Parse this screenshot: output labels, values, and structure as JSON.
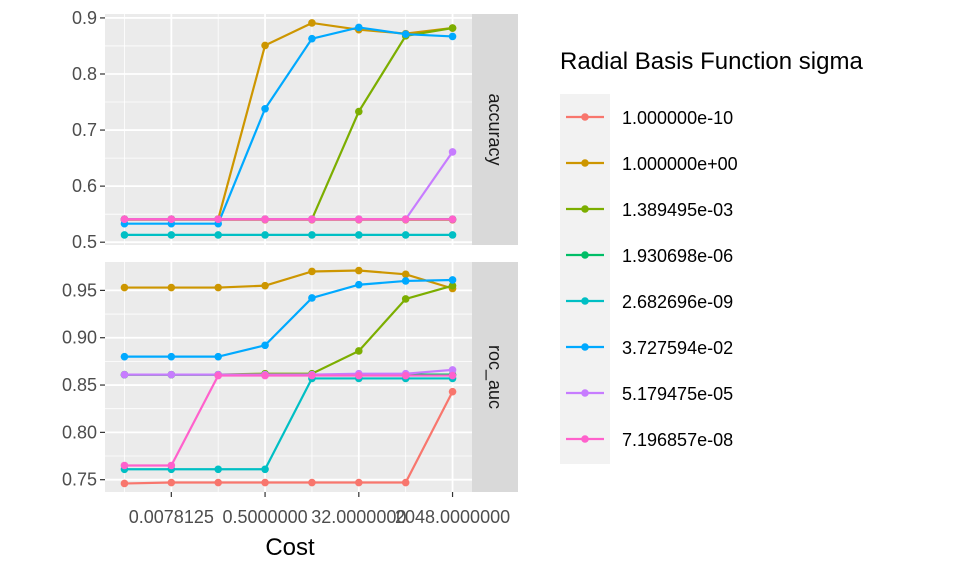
{
  "chart_data": {
    "type": "line",
    "xlabel": "Cost",
    "x_values": [
      0.0009765625,
      0.0078125,
      0.0625,
      0.5,
      4,
      32,
      256,
      2048
    ],
    "x_tick_values": [
      0.0078125,
      0.5,
      32,
      2048
    ],
    "x_tick_labels": [
      "0.0078125",
      "0.5000000",
      "32.0000000",
      "2048.0000000"
    ],
    "x_tick_display": [
      "0.0078125",
      "0.5000000",
      "32.0000000",
      "2048.0000000"
    ],
    "grid": true,
    "legend": {
      "title": "Radial Basis Function sigma",
      "placement": "right"
    },
    "series": [
      {
        "name": "1.000000e-10",
        "color": "#F8766D"
      },
      {
        "name": "1.000000e+00",
        "color": "#CD9600"
      },
      {
        "name": "1.389495e-03",
        "color": "#7CAE00"
      },
      {
        "name": "1.930698e-06",
        "color": "#00BE67"
      },
      {
        "name": "2.682696e-09",
        "color": "#00BFC4"
      },
      {
        "name": "3.727594e-02",
        "color": "#00A9FF"
      },
      {
        "name": "5.179475e-05",
        "color": "#C77CFF"
      },
      {
        "name": "7.196857e-08",
        "color": "#FF61CC"
      }
    ],
    "panels": [
      {
        "strip": "accuracy",
        "ylim": [
          0.495,
          0.907
        ],
        "y_ticks": [
          0.5,
          0.6,
          0.7,
          0.8,
          0.9
        ],
        "y_tick_labels": [
          "0.5",
          "0.6",
          "0.7",
          "0.8",
          "0.9"
        ],
        "values": [
          [
            0.54,
            0.54,
            0.54,
            0.54,
            0.54,
            0.54,
            0.54,
            0.54
          ],
          [
            0.541,
            0.541,
            0.541,
            0.851,
            0.891,
            0.879,
            0.872,
            0.882
          ],
          [
            0.541,
            0.541,
            0.541,
            0.541,
            0.541,
            0.733,
            0.868,
            0.882
          ],
          [
            0.541,
            0.541,
            0.541,
            0.541,
            0.541,
            0.541,
            0.541,
            0.541
          ],
          [
            0.513,
            0.513,
            0.513,
            0.513,
            0.513,
            0.513,
            0.513,
            0.513
          ],
          [
            0.533,
            0.533,
            0.533,
            0.738,
            0.863,
            0.883,
            0.871,
            0.867
          ],
          [
            0.541,
            0.541,
            0.541,
            0.541,
            0.541,
            0.541,
            0.541,
            0.661
          ],
          [
            0.541,
            0.541,
            0.541,
            0.541,
            0.541,
            0.541,
            0.541,
            0.541
          ]
        ]
      },
      {
        "strip": "roc_auc",
        "ylim": [
          0.737,
          0.98
        ],
        "y_ticks": [
          0.75,
          0.8,
          0.85,
          0.9,
          0.95
        ],
        "y_tick_labels": [
          "0.75",
          "0.80",
          "0.85",
          "0.90",
          "0.95"
        ],
        "values": [
          [
            0.746,
            0.747,
            0.747,
            0.747,
            0.747,
            0.747,
            0.747,
            0.843
          ],
          [
            0.953,
            0.953,
            0.953,
            0.955,
            0.97,
            0.971,
            0.967,
            0.952
          ],
          [
            0.861,
            0.861,
            0.861,
            0.862,
            0.862,
            0.886,
            0.941,
            0.955
          ],
          [
            0.861,
            0.861,
            0.861,
            0.861,
            0.861,
            0.861,
            0.861,
            0.861
          ],
          [
            0.761,
            0.761,
            0.761,
            0.761,
            0.857,
            0.857,
            0.857,
            0.857
          ],
          [
            0.88,
            0.88,
            0.88,
            0.892,
            0.942,
            0.956,
            0.96,
            0.961
          ],
          [
            0.861,
            0.861,
            0.861,
            0.861,
            0.861,
            0.862,
            0.862,
            0.866
          ],
          [
            0.765,
            0.765,
            0.86,
            0.86,
            0.86,
            0.86,
            0.86,
            0.86
          ]
        ]
      }
    ]
  }
}
